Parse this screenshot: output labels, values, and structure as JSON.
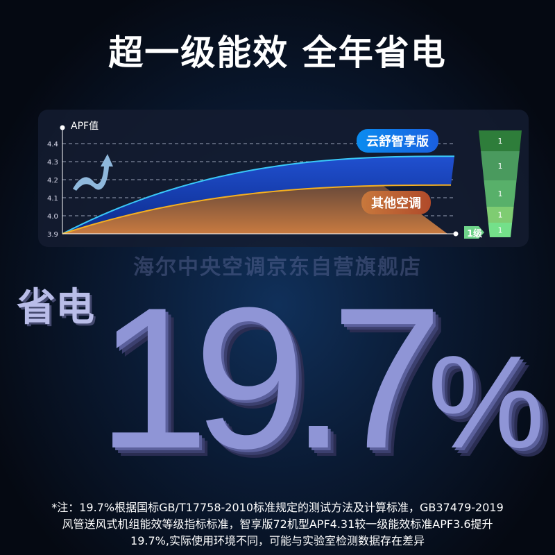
{
  "title": "超一级能效 全年省电",
  "chart_data": {
    "type": "area",
    "ylabel": "APF值",
    "yticks": [
      "3.9",
      "4.0",
      "4.1",
      "4.2",
      "4.3",
      "4.4"
    ],
    "ylim": [
      3.9,
      4.45
    ],
    "grid": true,
    "series": [
      {
        "name": "云舒智享版",
        "start": 3.9,
        "end": 4.33,
        "color": "#1e8cf0"
      },
      {
        "name": "其他空调",
        "start": 3.9,
        "end": 4.17,
        "color": "#f0a020"
      }
    ],
    "grade_marker": "1级",
    "grade_pyramid": [
      "1",
      "1",
      "1",
      "1",
      "1"
    ],
    "grade_colors": [
      "#2e7d3a",
      "#4a9a5e",
      "#58b06a",
      "#7fcc72",
      "#74e08a"
    ]
  },
  "saving_label": "省电",
  "big_value": "19.7",
  "big_unit": "%",
  "watermark": "海尔中央空调京东自营旗舰店",
  "note": [
    "*注：19.7%根据国标GB/T17758-2010标准规定的测试方法及计算标准，GB37479-2019",
    "风管送风式机组能效等级指标标准，智享版72机型APF4.31较一级能效标准APF3.6提升",
    "19.7%,实际使用环境不同，可能与实验室检测数据存在差异"
  ]
}
